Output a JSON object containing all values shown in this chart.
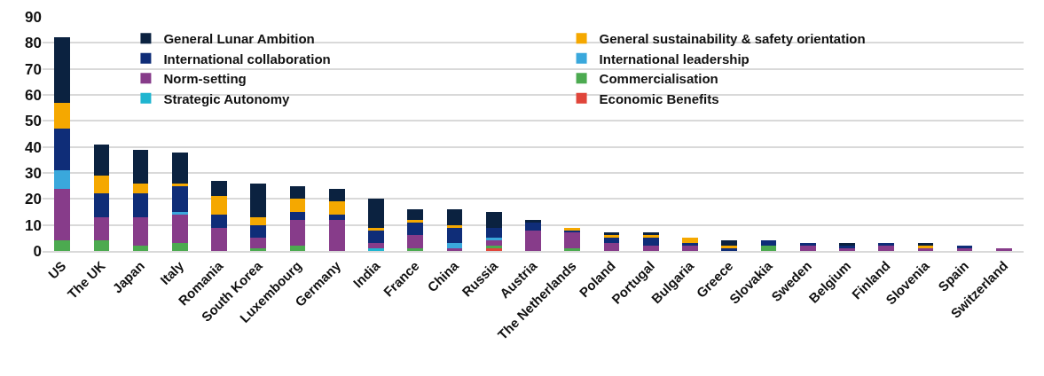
{
  "chart_data": {
    "type": "bar",
    "stacked": true,
    "categories": [
      "US",
      "The UK",
      "Japan",
      "Italy",
      "Romania",
      "South Korea",
      "Luxembourg",
      "Germany",
      "India",
      "France",
      "China",
      "Russia",
      "Austria",
      "The Netherlands",
      "Poland",
      "Portugal",
      "Bulgaria",
      "Greece",
      "Slovakia",
      "Sweden",
      "Belgium",
      "Finland",
      "Slovenia",
      "Spain",
      "Switzerland"
    ],
    "series": [
      {
        "name": "Economic Benefits",
        "color": "#e0453a",
        "values": [
          0,
          0,
          0,
          0,
          0,
          0,
          0,
          0,
          0,
          0,
          0,
          1,
          0,
          0,
          0,
          0,
          0,
          0,
          0,
          0,
          0,
          0,
          0,
          0,
          0
        ]
      },
      {
        "name": "Strategic Autonomy",
        "color": "#1fb5d0",
        "values": [
          0,
          0,
          0,
          0,
          0,
          0,
          0,
          0,
          1,
          0,
          0,
          0,
          0,
          0,
          0,
          0,
          0,
          0,
          0,
          0,
          0,
          0,
          0,
          0,
          0
        ]
      },
      {
        "name": "Commercialisation",
        "color": "#4caa50",
        "values": [
          4,
          4,
          2,
          3,
          0,
          1,
          2,
          0,
          0,
          1,
          0,
          1,
          0,
          1,
          0,
          0,
          0,
          0,
          2,
          0,
          0,
          0,
          0,
          0,
          0
        ]
      },
      {
        "name": "Norm-setting",
        "color": "#873c8a",
        "values": [
          20,
          9,
          11,
          11,
          9,
          4,
          10,
          12,
          2,
          5,
          1,
          2,
          8,
          6,
          3,
          2,
          2,
          0,
          0,
          2,
          1,
          2,
          1,
          1,
          1
        ]
      },
      {
        "name": "International leadership",
        "color": "#3aa8dc",
        "values": [
          7,
          0,
          0,
          1,
          0,
          0,
          0,
          0,
          0,
          0,
          2,
          1,
          0,
          0,
          0,
          0,
          0,
          0,
          0,
          0,
          0,
          0,
          0,
          0,
          0
        ]
      },
      {
        "name": "International collaboration",
        "color": "#0f2d78",
        "values": [
          16,
          9,
          9,
          10,
          5,
          5,
          3,
          2,
          5,
          5,
          6,
          4,
          3,
          1,
          2,
          3,
          1,
          1,
          2,
          1,
          1,
          1,
          0,
          1,
          0
        ]
      },
      {
        "name": "General sustainability & safety orientation",
        "color": "#f5a800",
        "values": [
          10,
          7,
          4,
          1,
          7,
          3,
          5,
          5,
          1,
          1,
          1,
          0,
          0,
          1,
          1,
          1,
          2,
          1,
          0,
          0,
          0,
          0,
          1,
          0,
          0
        ]
      },
      {
        "name": "General Lunar Ambition",
        "color": "#0b2240",
        "values": [
          25,
          12,
          13,
          12,
          6,
          13,
          5,
          5,
          11,
          4,
          6,
          6,
          1,
          0,
          1,
          1,
          0,
          2,
          0,
          0,
          1,
          0,
          1,
          0,
          0
        ]
      }
    ],
    "ylim": [
      0,
      90
    ],
    "yticks": [
      0,
      10,
      20,
      30,
      40,
      50,
      60,
      70,
      80,
      90
    ],
    "grid": "y",
    "legend": "top"
  }
}
